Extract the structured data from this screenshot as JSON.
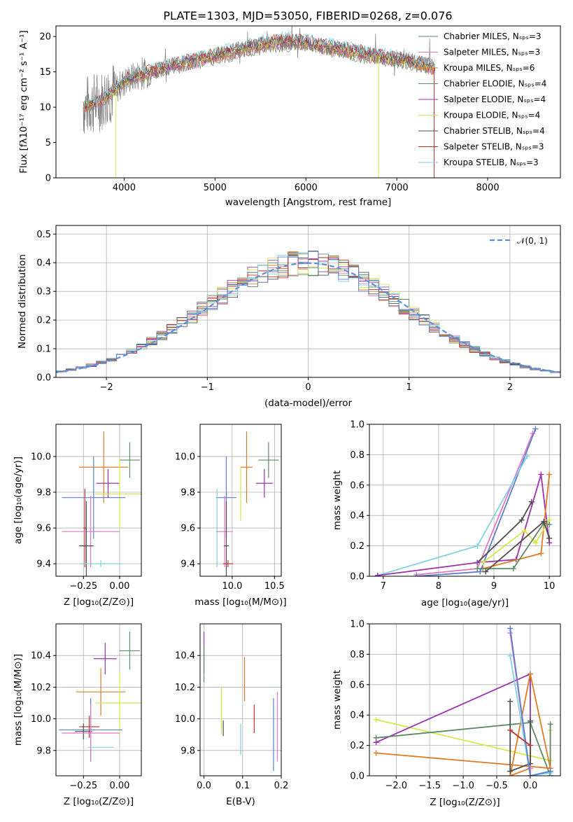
{
  "colors": {
    "chabrier_miles": "#5a8a5a",
    "salpeter_miles": "#e377c2",
    "kroupa_miles": "#e07b24",
    "chabrier_elodie": "#5c8a63",
    "salpeter_elodie": "#9b30b0",
    "kroupa_elodie": "#d4e84a",
    "chabrier_stelib": "#4d4d4d",
    "salpeter_stelib": "#c03030",
    "kroupa_stelib": "#7fd3e0",
    "normal_curve": "#5b8fd6",
    "spectrum_gray": "#808080",
    "blue_model": "#5b7fd0"
  },
  "chart_data": [
    {
      "id": "spectrum",
      "type": "line",
      "title": "PLATE=1303, MJD=53050, FIBERID=0268, z=0.076",
      "xlabel": "wavelength [Angstrom, rest frame]",
      "ylabel": "Flux [fλ10⁻¹⁷ erg cm⁻² s⁻¹ A⁻¹]",
      "xlim": [
        3250,
        8800
      ],
      "ylim": [
        0,
        21.5
      ],
      "xticks": [
        "4000",
        "5000",
        "6000",
        "7000",
        "8000"
      ],
      "yticks": [
        "0",
        "5",
        "10",
        "15",
        "20"
      ],
      "legend": [
        "Chabrier MILES, Nₛₚₛ=3",
        "Salpeter MILES, Nₛₚₛ=3",
        "Kroupa MILES, Nₛₚₛ=6",
        "Chabrier ELODIE, Nₛₚₛ=4",
        "Salpeter ELODIE, Nₛₚₛ=4",
        "Kroupa ELODIE, Nₛₚₛ=4",
        "Chabrier STELIB, Nₛₚₛ=4",
        "Salpeter STELIB, Nₛₚₛ=3",
        "Kroupa STELIB, Nₛₚₛ=3"
      ],
      "legend_keys": [
        "chabrier_miles",
        "salpeter_miles",
        "kroupa_miles",
        "chabrier_elodie",
        "salpeter_elodie",
        "kroupa_elodie",
        "chabrier_stelib",
        "salpeter_stelib",
        "kroupa_stelib"
      ],
      "continuum": {
        "x": [
          3550,
          3650,
          3750,
          3850,
          3950,
          4050,
          4150,
          4300,
          4500,
          4700,
          4900,
          5100,
          5300,
          5500,
          5700,
          5900,
          6100,
          6300,
          6500,
          6700,
          6900,
          7100,
          7300,
          7400
        ],
        "y": [
          10.0,
          10.5,
          11.0,
          12.0,
          13.0,
          14.0,
          14.5,
          15.0,
          15.8,
          16.4,
          17.0,
          17.6,
          18.2,
          18.8,
          19.2,
          19.3,
          18.8,
          18.4,
          17.9,
          17.4,
          17.0,
          16.6,
          16.0,
          15.6
        ]
      }
    },
    {
      "id": "residuals",
      "type": "histogram",
      "xlabel": "(data-model)/error",
      "ylabel": "Normed distribution",
      "xlim": [
        -2.5,
        2.5
      ],
      "ylim": [
        0,
        0.53
      ],
      "xticks": [
        "−2",
        "−1",
        "0",
        "1",
        "2"
      ],
      "yticks": [
        "0.0",
        "0.1",
        "0.2",
        "0.3",
        "0.4",
        "0.5"
      ],
      "legend": [
        "𝒩(0, 1)"
      ],
      "bin_width": 0.1
    },
    {
      "id": "age_vs_Z",
      "type": "errorbar",
      "xlabel": "Z [log₁₀(Z/Z⊙)]",
      "ylabel": "age  [log₁₀(age/yr)]",
      "xlim": [
        -0.44,
        0.15
      ],
      "ylim": [
        9.33,
        10.18
      ],
      "xticks": [
        "−0.25",
        "0.00"
      ],
      "xtick_values": [
        -0.25,
        0.0
      ],
      "yticks": [
        "9.4",
        "9.6",
        "9.8",
        "10.0"
      ],
      "ytick_values": [
        9.4,
        9.6,
        9.8,
        10.0
      ],
      "points": [
        {
          "c": "chabrier_elodie",
          "x": 0.07,
          "xe": 0.07,
          "y": 9.98,
          "ye": 0.1
        },
        {
          "c": "kroupa_miles",
          "x": -0.11,
          "xe": 0.17,
          "y": 9.94,
          "ye": 0.2
        },
        {
          "c": "salpeter_elodie",
          "x": -0.08,
          "xe": 0.08,
          "y": 9.85,
          "ye": 0.08
        },
        {
          "c": "kroupa_elodie",
          "x": 0.0,
          "xe": 0.17,
          "y": 9.79,
          "ye": 0.2
        },
        {
          "c": "blue_model",
          "x": -0.18,
          "xe": 0.22,
          "y": 9.77,
          "ye": 0.23
        },
        {
          "c": "salpeter_stelib",
          "x": -0.24,
          "xe": 0.01,
          "y": 9.6,
          "ye": 0.22
        },
        {
          "c": "salpeter_miles",
          "x": -0.2,
          "xe": 0.2,
          "y": 9.58,
          "ye": 0.2
        },
        {
          "c": "chabrier_stelib",
          "x": -0.23,
          "xe": 0.05,
          "y": 9.5,
          "ye": 0.25
        },
        {
          "c": "kroupa_stelib",
          "x": -0.13,
          "xe": 0.14,
          "y": 9.4,
          "ye": 0.02
        }
      ]
    },
    {
      "id": "age_vs_mass",
      "type": "errorbar",
      "xlabel": "mass [log₁₀(M/M⊙)]",
      "ylabel": "",
      "xlim": [
        9.62,
        10.58
      ],
      "ylim": [
        9.33,
        10.18
      ],
      "xticks": [
        "10.0",
        "10.5"
      ],
      "xtick_values": [
        10.0,
        10.5
      ],
      "yticks": [
        "9.4",
        "9.6",
        "9.8",
        "10.0"
      ],
      "ytick_values": [
        9.4,
        9.6,
        9.8,
        10.0
      ],
      "points": [
        {
          "c": "chabrier_elodie",
          "x": 10.43,
          "xe": 0.12,
          "y": 9.98,
          "ye": 0.1
        },
        {
          "c": "kroupa_miles",
          "x": 10.17,
          "xe": 0.07,
          "y": 9.94,
          "ye": 0.2
        },
        {
          "c": "salpeter_elodie",
          "x": 10.38,
          "xe": 0.1,
          "y": 9.85,
          "ye": 0.08
        },
        {
          "c": "kroupa_elodie",
          "x": 10.1,
          "xe": 0.01,
          "y": 9.79,
          "ye": 0.15
        },
        {
          "c": "blue_model",
          "x": 9.93,
          "xe": 0.12,
          "y": 9.77,
          "ye": 0.23
        },
        {
          "c": "kroupa_stelib",
          "x": 9.82,
          "xe": 0.01,
          "y": 9.6,
          "ye": 0.22
        },
        {
          "c": "salpeter_miles",
          "x": 9.91,
          "xe": 0.1,
          "y": 9.58,
          "ye": 0.2
        },
        {
          "c": "chabrier_stelib",
          "x": 9.93,
          "xe": 0.03,
          "y": 9.5,
          "ye": 0.25
        },
        {
          "c": "salpeter_stelib",
          "x": 9.95,
          "xe": 0.06,
          "y": 9.4,
          "ye": 0.02
        }
      ]
    },
    {
      "id": "weight_vs_age",
      "type": "line",
      "xlabel": "age  [log₁₀(age/yr)]",
      "ylabel": "mass weight",
      "xlim": [
        6.75,
        10.2
      ],
      "ylim": [
        0,
        1
      ],
      "xticks": [
        "7",
        "8",
        "9",
        "10"
      ],
      "xtick_values": [
        7,
        8,
        9,
        10
      ],
      "yticks": [
        "0.0",
        "0.2",
        "0.4",
        "0.6",
        "0.8",
        "1.0"
      ],
      "ytick_values": [
        0,
        0.2,
        0.4,
        0.6,
        0.8,
        1.0
      ],
      "series": [
        {
          "c": "salpeter_miles",
          "x": [
            7.6,
            8.7,
            9.7
          ],
          "y": [
            0.01,
            0.05,
            0.94
          ]
        },
        {
          "c": "blue_model",
          "x": [
            7.6,
            8.75,
            9.75
          ],
          "y": [
            0.0,
            0.03,
            0.97
          ]
        },
        {
          "c": "kroupa_stelib",
          "x": [
            6.9,
            8.7,
            9.6
          ],
          "y": [
            0.005,
            0.2,
            0.79
          ]
        },
        {
          "c": "chabrier_stelib",
          "x": [
            8.7,
            9.5,
            9.68
          ],
          "y": [
            0.09,
            0.37,
            0.49
          ]
        },
        {
          "c": "salpeter_elodie",
          "x": [
            6.9,
            8.7,
            9.4,
            9.85,
            10.0
          ],
          "y": [
            0.005,
            0.09,
            0.11,
            0.67,
            0.22
          ]
        },
        {
          "c": "kroupa_miles",
          "x": [
            8.8,
            9.85,
            10.0
          ],
          "y": [
            0.05,
            0.15,
            0.67
          ]
        },
        {
          "c": "kroupa_elodie",
          "x": [
            8.8,
            9.55,
            9.75,
            10.0
          ],
          "y": [
            0.09,
            0.3,
            0.22,
            0.37
          ]
        },
        {
          "c": "chabrier_elodie",
          "x": [
            8.7,
            9.35,
            9.9,
            10.0
          ],
          "y": [
            0.05,
            0.05,
            0.35,
            0.34
          ]
        },
        {
          "c": "chabrier_stelib",
          "x": [
            8.85,
            9.9,
            10.0
          ],
          "y": [
            0.03,
            0.36,
            0.25
          ]
        }
      ]
    },
    {
      "id": "mass_vs_Z",
      "type": "errorbar",
      "xlabel": "Z [log₁₀(Z/Z⊙)]",
      "ylabel": "mass [log₁₀(M/M⊙)]",
      "xlim": [
        -0.44,
        0.15
      ],
      "ylim": [
        9.64,
        10.6
      ],
      "xticks": [
        "−0.25",
        "0.00"
      ],
      "xtick_values": [
        -0.25,
        0.0
      ],
      "yticks": [
        "9.8",
        "10.0",
        "10.2",
        "10.4"
      ],
      "ytick_values": [
        9.8,
        10.0,
        10.2,
        10.4
      ],
      "points": [
        {
          "c": "chabrier_elodie",
          "x": 0.07,
          "xe": 0.07,
          "y": 10.43,
          "ye": 0.12
        },
        {
          "c": "salpeter_elodie",
          "x": -0.1,
          "xe": 0.08,
          "y": 10.38,
          "ye": 0.1
        },
        {
          "c": "kroupa_miles",
          "x": -0.13,
          "xe": 0.17,
          "y": 10.17,
          "ye": 0.15
        },
        {
          "c": "kroupa_elodie",
          "x": 0.0,
          "xe": 0.17,
          "y": 10.1,
          "ye": 0.2
        },
        {
          "c": "salpeter_stelib",
          "x": -0.21,
          "xe": 0.07,
          "y": 9.95,
          "ye": 0.07
        },
        {
          "c": "blue_model",
          "x": -0.2,
          "xe": 0.22,
          "y": 9.93,
          "ye": 0.2
        },
        {
          "c": "chabrier_stelib",
          "x": -0.25,
          "xe": 0.06,
          "y": 9.92,
          "ye": 0.05
        },
        {
          "c": "salpeter_miles",
          "x": -0.2,
          "xe": 0.2,
          "y": 9.91,
          "ye": 0.18
        },
        {
          "c": "kroupa_stelib",
          "x": -0.13,
          "xe": 0.09,
          "y": 9.82,
          "ye": 0.0
        }
      ]
    },
    {
      "id": "mass_vs_ebv",
      "type": "errorbar",
      "xlabel": "E(B-V)",
      "ylabel": "",
      "xlim": [
        -0.01,
        0.2
      ],
      "ylim": [
        9.64,
        10.6
      ],
      "xticks": [
        "0.0",
        "0.1",
        "0.2"
      ],
      "xtick_values": [
        0.0,
        0.1,
        0.2
      ],
      "yticks": [
        "9.8",
        "10.0",
        "10.2",
        "10.4"
      ],
      "ytick_values": [
        9.8,
        10.0,
        10.2,
        10.4
      ],
      "points": [
        {
          "c": "salpeter_elodie",
          "x": 0.0,
          "xe": 0.0,
          "y": 10.42,
          "ye": 0.13
        },
        {
          "c": "chabrier_elodie",
          "x": 0.0,
          "xe": 0.0,
          "y": 10.35,
          "ye": 0.12
        },
        {
          "c": "kroupa_miles",
          "x": 0.105,
          "xe": 0.0,
          "y": 10.25,
          "ye": 0.14
        },
        {
          "c": "kroupa_elodie",
          "x": 0.045,
          "xe": 0.0,
          "y": 10.05,
          "ye": 0.15
        },
        {
          "c": "salpeter_stelib",
          "x": 0.13,
          "xe": 0.0,
          "y": 10.0,
          "ye": 0.09
        },
        {
          "c": "chabrier_stelib",
          "x": 0.05,
          "xe": 0.0,
          "y": 9.94,
          "ye": 0.05
        },
        {
          "c": "blue_model",
          "x": 0.18,
          "xe": 0.0,
          "y": 9.9,
          "ye": 0.23
        },
        {
          "c": "salpeter_miles",
          "x": 0.19,
          "xe": 0.0,
          "y": 9.95,
          "ye": 0.22
        },
        {
          "c": "kroupa_stelib",
          "x": 0.095,
          "xe": 0.0,
          "y": 9.87,
          "ye": 0.1
        }
      ]
    },
    {
      "id": "weight_vs_Z",
      "type": "line",
      "xlabel": "Z [log₁₀(Z/Z⊙)]",
      "ylabel": "mass weight",
      "xlim": [
        -2.4,
        0.45
      ],
      "ylim": [
        0,
        1
      ],
      "xticks": [
        "−2.0",
        "−1.5",
        "−1.0",
        "−0.5",
        "0.0"
      ],
      "xtick_values": [
        -2.0,
        -1.5,
        -1.0,
        -0.5,
        0.0
      ],
      "yticks": [
        "0.0",
        "0.2",
        "0.4",
        "0.6",
        "0.8",
        "1.0"
      ],
      "ytick_values": [
        0,
        0.2,
        0.4,
        0.6,
        0.8,
        1.0
      ],
      "series": [
        {
          "c": "kroupa_elodie",
          "x": [
            -2.3,
            0.3,
            0.3
          ],
          "y": [
            0.37,
            0.1,
            0.3
          ]
        },
        {
          "c": "salpeter_elodie",
          "x": [
            -2.3,
            0.0,
            0.0
          ],
          "y": [
            0.22,
            0.67,
            0.0
          ]
        },
        {
          "c": "chabrier_elodie",
          "x": [
            -2.3,
            0.0,
            0.3,
            0.3
          ],
          "y": [
            0.25,
            0.35,
            0.0,
            0.34
          ]
        },
        {
          "c": "kroupa_miles",
          "x": [
            -2.3,
            0.3,
            0.0,
            -0.3,
            0.0
          ],
          "y": [
            0.15,
            0.05,
            0.67,
            0.0,
            0.05
          ]
        },
        {
          "c": "chabrier_stelib",
          "x": [
            -0.3,
            -0.3,
            0.0,
            0.0
          ],
          "y": [
            0.49,
            0.03,
            0.08,
            0.36
          ]
        },
        {
          "c": "salpeter_miles",
          "x": [
            -0.3,
            0.0,
            0.0
          ],
          "y": [
            0.94,
            0.0,
            0.05
          ]
        },
        {
          "c": "kroupa_stelib",
          "x": [
            -0.3,
            0.0,
            0.3
          ],
          "y": [
            0.79,
            0.0,
            0.02
          ]
        },
        {
          "c": "blue_model",
          "x": [
            -0.3,
            0.0,
            0.3
          ],
          "y": [
            0.97,
            0.0,
            0.03
          ]
        },
        {
          "c": "salpeter_stelib",
          "x": [
            -0.3,
            0.0
          ],
          "y": [
            0.3,
            0.2
          ]
        }
      ]
    }
  ]
}
